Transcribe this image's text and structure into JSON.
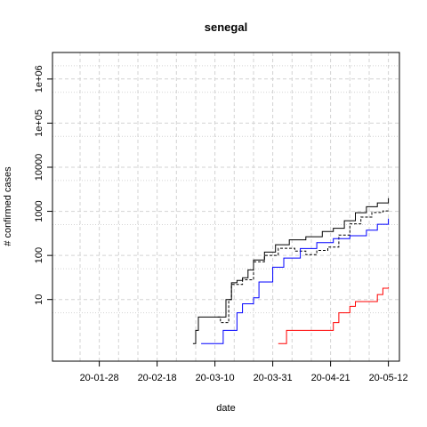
{
  "chart_data": {
    "type": "line",
    "title": "senegal",
    "xlabel": "date",
    "ylabel": "# confirmed cases",
    "y_scale": "log",
    "ylim": [
      0.4,
      4000000
    ],
    "x_ticks": [
      "20-01-28",
      "20-02-18",
      "20-03-10",
      "20-03-31",
      "20-04-21",
      "20-05-12"
    ],
    "x_minor_ticks": [
      "20-01-21",
      "20-02-04",
      "20-02-11",
      "20-02-25",
      "20-03-03",
      "20-03-17",
      "20-03-24",
      "20-04-07",
      "20-04-14",
      "20-04-28",
      "20-05-05"
    ],
    "xlim": [
      "2020-01-11",
      "2020-05-16"
    ],
    "y_ticks": [
      {
        "value": 10,
        "label": "10"
      },
      {
        "value": 100,
        "label": "100"
      },
      {
        "value": 1000,
        "label": "1000"
      },
      {
        "value": 10000,
        "label": "10000"
      },
      {
        "value": 100000,
        "label": "1e+05"
      },
      {
        "value": 1000000,
        "label": "1e+06"
      }
    ],
    "grid": true,
    "series": [
      {
        "color": "#000000",
        "dash": "solid",
        "points": [
          [
            "2020-03-02",
            1
          ],
          [
            "2020-03-03",
            2
          ],
          [
            "2020-03-04",
            4
          ],
          [
            "2020-03-09",
            4
          ],
          [
            "2020-03-13",
            4
          ],
          [
            "2020-03-14",
            10
          ],
          [
            "2020-03-16",
            24
          ],
          [
            "2020-03-18",
            27
          ],
          [
            "2020-03-20",
            31
          ],
          [
            "2020-03-22",
            47
          ],
          [
            "2020-03-24",
            79
          ],
          [
            "2020-03-28",
            119
          ],
          [
            "2020-04-01",
            175
          ],
          [
            "2020-04-06",
            226
          ],
          [
            "2020-04-12",
            265
          ],
          [
            "2020-04-18",
            350
          ],
          [
            "2020-04-22",
            412
          ],
          [
            "2020-04-26",
            614
          ],
          [
            "2020-04-30",
            933
          ],
          [
            "2020-05-04",
            1271
          ],
          [
            "2020-05-08",
            1551
          ],
          [
            "2020-05-12",
            1995
          ]
        ]
      },
      {
        "color": "#000000",
        "dash": "dashed",
        "points": [
          [
            "2020-03-11",
            4
          ],
          [
            "2020-03-12",
            3
          ],
          [
            "2020-03-14",
            3
          ],
          [
            "2020-03-15",
            10
          ],
          [
            "2020-03-16",
            22
          ],
          [
            "2020-03-20",
            28
          ],
          [
            "2020-03-24",
            72
          ],
          [
            "2020-03-28",
            100
          ],
          [
            "2020-04-02",
            145
          ],
          [
            "2020-04-08",
            125
          ],
          [
            "2020-04-12",
            104
          ],
          [
            "2020-04-16",
            130
          ],
          [
            "2020-04-20",
            155
          ],
          [
            "2020-04-24",
            290
          ],
          [
            "2020-04-28",
            520
          ],
          [
            "2020-05-02",
            740
          ],
          [
            "2020-05-06",
            940
          ],
          [
            "2020-05-10",
            1020
          ],
          [
            "2020-05-12",
            1100
          ]
        ]
      },
      {
        "color": "#0000ff",
        "dash": "solid",
        "points": [
          [
            "2020-03-05",
            1
          ],
          [
            "2020-03-12",
            1
          ],
          [
            "2020-03-13",
            2
          ],
          [
            "2020-03-17",
            2
          ],
          [
            "2020-03-18",
            5
          ],
          [
            "2020-03-20",
            8
          ],
          [
            "2020-03-24",
            11
          ],
          [
            "2020-03-26",
            25
          ],
          [
            "2020-03-31",
            54
          ],
          [
            "2020-04-04",
            87
          ],
          [
            "2020-04-10",
            143
          ],
          [
            "2020-04-16",
            195
          ],
          [
            "2020-04-22",
            240
          ],
          [
            "2020-04-28",
            280
          ],
          [
            "2020-05-04",
            372
          ],
          [
            "2020-05-08",
            510
          ],
          [
            "2020-05-12",
            686
          ]
        ]
      },
      {
        "color": "#ff0000",
        "dash": "solid",
        "points": [
          [
            "2020-04-02",
            1
          ],
          [
            "2020-04-04",
            1
          ],
          [
            "2020-04-05",
            2
          ],
          [
            "2020-04-20",
            2
          ],
          [
            "2020-04-22",
            3
          ],
          [
            "2020-04-24",
            5
          ],
          [
            "2020-04-28",
            7
          ],
          [
            "2020-04-30",
            9
          ],
          [
            "2020-05-05",
            9
          ],
          [
            "2020-05-08",
            13
          ],
          [
            "2020-05-10",
            18
          ],
          [
            "2020-05-12",
            19
          ]
        ]
      }
    ]
  }
}
